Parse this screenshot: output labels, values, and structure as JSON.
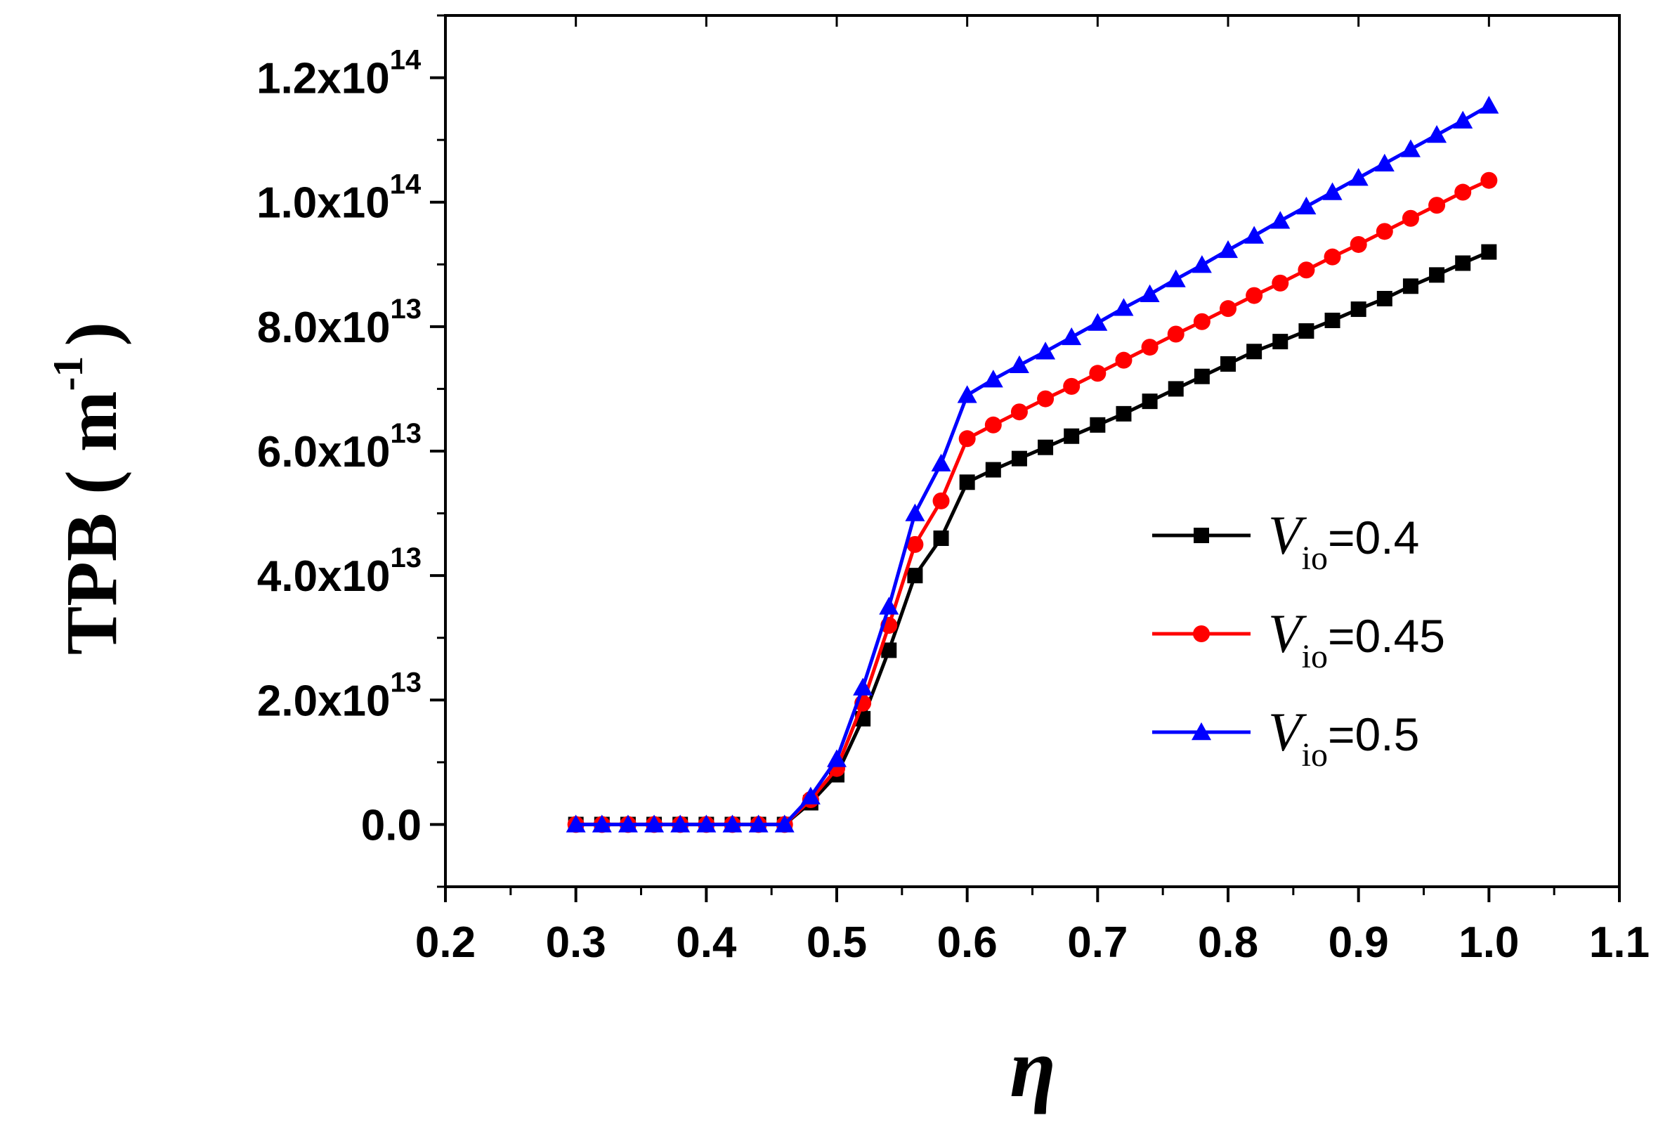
{
  "chart_data": {
    "type": "line",
    "title": "",
    "xlabel": "η",
    "ylabel": {
      "main": "TPB ( m",
      "sup": "-1",
      "end": ")"
    },
    "xlim": [
      0.2,
      1.1
    ],
    "ylim": [
      -10000000000000.0,
      130000000000000.0
    ],
    "xticks": [
      0.2,
      0.3,
      0.4,
      0.5,
      0.6,
      0.7,
      0.8,
      0.9,
      1.0,
      1.1
    ],
    "xtick_labels": [
      "0.2",
      "0.3",
      "0.4",
      "0.5",
      "0.6",
      "0.7",
      "0.8",
      "0.9",
      "1.0",
      "1.1"
    ],
    "yticks": [
      {
        "value": 0,
        "mantissa": "0.0",
        "exp": ""
      },
      {
        "value": 20000000000000.0,
        "mantissa": "2.0x10",
        "exp": "13"
      },
      {
        "value": 40000000000000.0,
        "mantissa": "4.0x10",
        "exp": "13"
      },
      {
        "value": 60000000000000.0,
        "mantissa": "6.0x10",
        "exp": "13"
      },
      {
        "value": 80000000000000.0,
        "mantissa": "8.0x10",
        "exp": "13"
      },
      {
        "value": 100000000000000.0,
        "mantissa": "1.0x10",
        "exp": "14"
      },
      {
        "value": 120000000000000.0,
        "mantissa": "1.2x10",
        "exp": "14"
      }
    ],
    "x": [
      0.3,
      0.32,
      0.34,
      0.36,
      0.38,
      0.4,
      0.42,
      0.44,
      0.46,
      0.48,
      0.5,
      0.52,
      0.54,
      0.56,
      0.58,
      0.6,
      0.62,
      0.64,
      0.66,
      0.68,
      0.7,
      0.72,
      0.74,
      0.76,
      0.78,
      0.8,
      0.82,
      0.84,
      0.86,
      0.88,
      0.9,
      0.92,
      0.94,
      0.96,
      0.98,
      1.0
    ],
    "series": [
      {
        "name": "V_io=0.4",
        "legend": {
          "var": "V",
          "sub": "io",
          "rest": "=0.4"
        },
        "color": "#000000",
        "marker": "square",
        "values": [
          0,
          0,
          0,
          0,
          0,
          0,
          0,
          0,
          0,
          3500000000000.0,
          8000000000000.0,
          17000000000000.0,
          28000000000000.0,
          40000000000000.0,
          46000000000000.0,
          55000000000000.0,
          57000000000000.0,
          58800000000000.0,
          60600000000000.0,
          62400000000000.0,
          64200000000000.0,
          66000000000000.0,
          68000000000000.0,
          70000000000000.0,
          72000000000000.0,
          74000000000000.0,
          76000000000000.0,
          77600000000000.0,
          79300000000000.0,
          81000000000000.0,
          82800000000000.0,
          84500000000000.0,
          86500000000000.0,
          88300000000000.0,
          90200000000000.0,
          92000000000000.0
        ]
      },
      {
        "name": "V_io=0.45",
        "legend": {
          "var": "V",
          "sub": "io",
          "rest": "=0.45"
        },
        "color": "#ff0000",
        "marker": "circle",
        "values": [
          0,
          0,
          0,
          0,
          0,
          0,
          0,
          0,
          0,
          4000000000000.0,
          9000000000000.0,
          19500000000000.0,
          32000000000000.0,
          45000000000000.0,
          52000000000000.0,
          62000000000000.0,
          64200000000000.0,
          66300000000000.0,
          68400000000000.0,
          70400000000000.0,
          72500000000000.0,
          74600000000000.0,
          76700000000000.0,
          78800000000000.0,
          80800000000000.0,
          82900000000000.0,
          85000000000000.0,
          87000000000000.0,
          89100000000000.0,
          91200000000000.0,
          93200000000000.0,
          95300000000000.0,
          97400000000000.0,
          99500000000000.0,
          101600000000000.0,
          103500000000000.0
        ]
      },
      {
        "name": "V_io=0.5",
        "legend": {
          "var": "V",
          "sub": "io",
          "rest": "=0.5"
        },
        "color": "#0000ff",
        "marker": "triangle",
        "values": [
          0,
          0,
          0,
          0,
          0,
          0,
          0,
          0,
          0,
          4500000000000.0,
          10500000000000.0,
          22000000000000.0,
          35000000000000.0,
          50000000000000.0,
          58000000000000.0,
          69000000000000.0,
          71500000000000.0,
          73800000000000.0,
          76000000000000.0,
          78300000000000.0,
          80600000000000.0,
          83000000000000.0,
          85200000000000.0,
          87600000000000.0,
          89900000000000.0,
          92300000000000.0,
          94600000000000.0,
          97000000000000.0,
          99300000000000.0,
          101600000000000.0,
          103900000000000.0,
          106200000000000.0,
          108500000000000.0,
          110800000000000.0,
          113100000000000.0,
          115500000000000.0
        ]
      }
    ],
    "legend_position": "right"
  }
}
